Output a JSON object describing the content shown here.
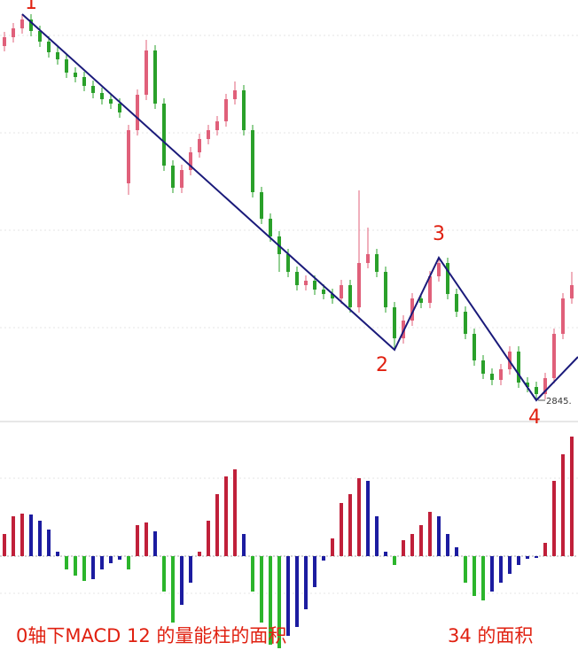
{
  "chart_data": [
    {
      "type": "candlestick",
      "x": [
        0,
        1,
        2,
        3,
        4,
        5,
        6,
        7,
        8,
        9,
        10,
        11,
        12,
        13,
        14,
        15,
        16,
        17,
        18,
        19,
        20,
        21,
        22,
        23,
        24,
        25,
        26,
        27,
        28,
        29,
        30,
        31,
        32,
        33,
        34,
        35,
        36,
        37,
        38,
        39,
        40,
        41,
        42,
        43,
        44,
        45,
        46,
        47,
        48,
        49,
        50,
        51,
        52,
        53,
        54,
        55,
        56,
        57,
        58,
        59,
        60,
        61,
        62,
        63,
        64
      ],
      "open": [
        3245,
        3255,
        3265,
        3275,
        3262,
        3250,
        3238,
        3230,
        3215,
        3210,
        3200,
        3192,
        3185,
        3180,
        3090,
        3150,
        3190,
        3240,
        3180,
        3110,
        3085,
        3105,
        3125,
        3140,
        3150,
        3160,
        3185,
        3195,
        3150,
        3080,
        3050,
        3030,
        3010,
        2990,
        2975,
        2980,
        2970,
        2965,
        2960,
        2975,
        2950,
        3000,
        3010,
        2990,
        2950,
        2915,
        2935,
        2960,
        2955,
        2985,
        3000,
        2965,
        2945,
        2920,
        2890,
        2875,
        2868,
        2880,
        2900,
        2865,
        2860,
        2852,
        2870,
        2920,
        2960
      ],
      "high": [
        3261,
        3271,
        3281,
        3281,
        3268,
        3256,
        3244,
        3236,
        3221,
        3216,
        3206,
        3198,
        3191,
        3186,
        3156,
        3196,
        3252,
        3246,
        3186,
        3116,
        3111,
        3131,
        3146,
        3156,
        3166,
        3191,
        3205,
        3201,
        3156,
        3086,
        3056,
        3036,
        3016,
        2996,
        2986,
        2986,
        2976,
        2971,
        2981,
        2981,
        3082,
        3040,
        3016,
        2996,
        2956,
        2941,
        2966,
        2966,
        2991,
        3006,
        3006,
        2971,
        2951,
        2926,
        2896,
        2881,
        2886,
        2906,
        2906,
        2871,
        2866,
        2876,
        2926,
        2966,
        2990
      ],
      "low": [
        3239,
        3249,
        3259,
        3256,
        3244,
        3232,
        3224,
        3209,
        3204,
        3194,
        3186,
        3179,
        3174,
        3164,
        3077,
        3144,
        3184,
        3174,
        3104,
        3079,
        3079,
        3099,
        3119,
        3134,
        3144,
        3154,
        3179,
        3144,
        3074,
        3044,
        3024,
        2990,
        2984,
        2969,
        2969,
        2964,
        2959,
        2954,
        2954,
        2944,
        2944,
        2994,
        2984,
        2944,
        2902,
        2909,
        2929,
        2949,
        2949,
        2979,
        2959,
        2939,
        2914,
        2884,
        2869,
        2862,
        2862,
        2874,
        2859,
        2854,
        2845,
        2846,
        2864,
        2914,
        2954
      ],
      "close": [
        3255,
        3265,
        3275,
        3262,
        3250,
        3238,
        3230,
        3215,
        3210,
        3200,
        3192,
        3185,
        3180,
        3170,
        3150,
        3190,
        3240,
        3180,
        3110,
        3085,
        3105,
        3125,
        3140,
        3150,
        3160,
        3185,
        3195,
        3150,
        3080,
        3050,
        3030,
        3010,
        2990,
        2975,
        2980,
        2970,
        2965,
        2960,
        2975,
        2950,
        3000,
        3010,
        2990,
        2950,
        2915,
        2935,
        2960,
        2955,
        2985,
        3000,
        2965,
        2945,
        2920,
        2890,
        2875,
        2868,
        2880,
        2900,
        2865,
        2860,
        2852,
        2870,
        2920,
        2960,
        2975
      ],
      "xlim": [
        -0.5,
        64.7
      ],
      "ylim": [
        2822,
        3297
      ],
      "colors": {
        "up": "#e0607a",
        "down": "#2aa02a"
      },
      "zigzag": {
        "x": [
          2,
          44,
          49,
          60,
          64.7
        ],
        "values": [
          3281,
          2902,
          3006,
          2845,
          2894
        ],
        "color": "#1a1a7a"
      },
      "point_labels": [
        "1",
        "2",
        "3",
        "4"
      ],
      "low_label": {
        "value": 2845,
        "label": "2845."
      }
    },
    {
      "type": "bar",
      "x": [
        0,
        1,
        2,
        3,
        4,
        5,
        6,
        7,
        8,
        9,
        10,
        11,
        12,
        13,
        14,
        15,
        16,
        17,
        18,
        19,
        20,
        21,
        22,
        23,
        24,
        25,
        26,
        27,
        28,
        29,
        30,
        31,
        32,
        33,
        34,
        35,
        36,
        37,
        38,
        39,
        40,
        41,
        42,
        43,
        44,
        45,
        46,
        47,
        48,
        49,
        50,
        51,
        52,
        53,
        54,
        55,
        56,
        57,
        58,
        59,
        60,
        61,
        62,
        63,
        64
      ],
      "values": [
        25,
        45,
        48,
        47,
        40,
        30,
        5,
        -15,
        -22,
        -28,
        -26,
        -15,
        -8,
        -4,
        -15,
        35,
        38,
        28,
        -40,
        -75,
        -55,
        -30,
        5,
        40,
        70,
        90,
        98,
        25,
        -40,
        -75,
        -100,
        -104,
        -90,
        -80,
        -60,
        -35,
        -5,
        20,
        60,
        70,
        88,
        85,
        45,
        5,
        -10,
        18,
        25,
        35,
        50,
        45,
        25,
        10,
        -30,
        -45,
        -50,
        -40,
        -30,
        -20,
        -10,
        -3,
        -2,
        15,
        85,
        115,
        135
      ],
      "xlim": [
        -0.5,
        64.7
      ],
      "ylim": [
        -106,
        150
      ],
      "colors": {
        "rise": "#c0203a",
        "fall": "#1c1ca0",
        "neg": "#2cb52c"
      },
      "annotations": [
        "0轴下MACD 12 的量能柱的面积",
        "34 的面积"
      ]
    }
  ]
}
